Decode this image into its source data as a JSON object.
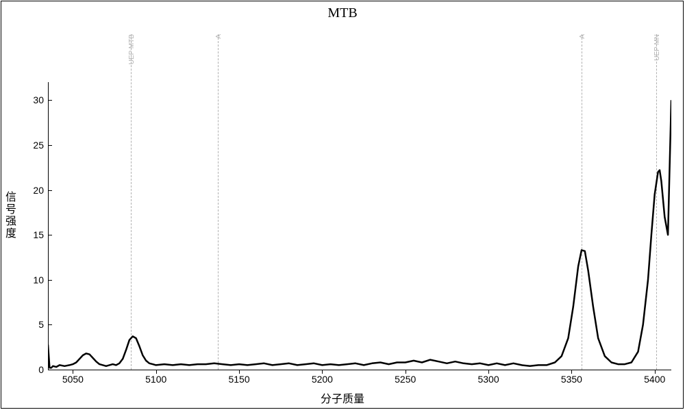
{
  "chart": {
    "type": "line",
    "title": "MTB",
    "title_fontsize": 20,
    "xlabel": "分子质量",
    "ylabel": "信号强度",
    "label_fontsize": 16,
    "xlim": [
      5035,
      5410
    ],
    "ylim": [
      0,
      32
    ],
    "xtick_vals": [
      5050,
      5100,
      5150,
      5200,
      5250,
      5300,
      5350,
      5400
    ],
    "ytick_vals": [
      0,
      5,
      10,
      15,
      20,
      25,
      30
    ],
    "background_color": "#ffffff",
    "axis_color": "#000000",
    "line_color": "#000000",
    "line_width": 2.5,
    "ref_lines": [
      {
        "x": 5085,
        "label": "UEP MTB",
        "color": "#b0b0b0"
      },
      {
        "x": 5137,
        "label": "A",
        "color": "#b0b0b0"
      },
      {
        "x": 5356,
        "label": "A",
        "color": "#b0b0b0"
      },
      {
        "x": 5401,
        "label": "UEP MN",
        "color": "#b0b0b0"
      }
    ],
    "data": [
      [
        5035,
        2.8
      ],
      [
        5036,
        0.2
      ],
      [
        5037,
        0.2
      ],
      [
        5038,
        0.4
      ],
      [
        5040,
        0.3
      ],
      [
        5042,
        0.5
      ],
      [
        5045,
        0.4
      ],
      [
        5048,
        0.5
      ],
      [
        5050,
        0.6
      ],
      [
        5052,
        0.8
      ],
      [
        5054,
        1.2
      ],
      [
        5056,
        1.6
      ],
      [
        5058,
        1.8
      ],
      [
        5060,
        1.7
      ],
      [
        5062,
        1.3
      ],
      [
        5064,
        0.9
      ],
      [
        5066,
        0.6
      ],
      [
        5068,
        0.5
      ],
      [
        5070,
        0.4
      ],
      [
        5072,
        0.5
      ],
      [
        5074,
        0.6
      ],
      [
        5076,
        0.5
      ],
      [
        5078,
        0.7
      ],
      [
        5080,
        1.2
      ],
      [
        5082,
        2.2
      ],
      [
        5084,
        3.3
      ],
      [
        5086,
        3.7
      ],
      [
        5088,
        3.5
      ],
      [
        5090,
        2.6
      ],
      [
        5092,
        1.6
      ],
      [
        5094,
        1.0
      ],
      [
        5096,
        0.7
      ],
      [
        5098,
        0.6
      ],
      [
        5100,
        0.5
      ],
      [
        5105,
        0.6
      ],
      [
        5110,
        0.5
      ],
      [
        5115,
        0.6
      ],
      [
        5120,
        0.5
      ],
      [
        5125,
        0.6
      ],
      [
        5130,
        0.6
      ],
      [
        5135,
        0.7
      ],
      [
        5140,
        0.6
      ],
      [
        5145,
        0.5
      ],
      [
        5150,
        0.6
      ],
      [
        5155,
        0.5
      ],
      [
        5160,
        0.6
      ],
      [
        5165,
        0.7
      ],
      [
        5170,
        0.5
      ],
      [
        5175,
        0.6
      ],
      [
        5180,
        0.7
      ],
      [
        5185,
        0.5
      ],
      [
        5190,
        0.6
      ],
      [
        5195,
        0.7
      ],
      [
        5200,
        0.5
      ],
      [
        5205,
        0.6
      ],
      [
        5210,
        0.5
      ],
      [
        5215,
        0.6
      ],
      [
        5220,
        0.7
      ],
      [
        5225,
        0.5
      ],
      [
        5230,
        0.7
      ],
      [
        5235,
        0.8
      ],
      [
        5240,
        0.6
      ],
      [
        5245,
        0.8
      ],
      [
        5250,
        0.8
      ],
      [
        5255,
        1.0
      ],
      [
        5260,
        0.8
      ],
      [
        5265,
        1.1
      ],
      [
        5270,
        0.9
      ],
      [
        5275,
        0.7
      ],
      [
        5280,
        0.9
      ],
      [
        5285,
        0.7
      ],
      [
        5290,
        0.6
      ],
      [
        5295,
        0.7
      ],
      [
        5300,
        0.5
      ],
      [
        5305,
        0.7
      ],
      [
        5310,
        0.5
      ],
      [
        5315,
        0.7
      ],
      [
        5320,
        0.5
      ],
      [
        5325,
        0.4
      ],
      [
        5330,
        0.5
      ],
      [
        5335,
        0.5
      ],
      [
        5340,
        0.8
      ],
      [
        5344,
        1.5
      ],
      [
        5348,
        3.5
      ],
      [
        5351,
        7.0
      ],
      [
        5354,
        11.5
      ],
      [
        5356,
        13.3
      ],
      [
        5358,
        13.2
      ],
      [
        5360,
        11.0
      ],
      [
        5363,
        7.0
      ],
      [
        5366,
        3.5
      ],
      [
        5370,
        1.5
      ],
      [
        5374,
        0.8
      ],
      [
        5378,
        0.6
      ],
      [
        5382,
        0.6
      ],
      [
        5386,
        0.8
      ],
      [
        5390,
        2.0
      ],
      [
        5393,
        5.0
      ],
      [
        5396,
        10.0
      ],
      [
        5398,
        15.0
      ],
      [
        5400,
        19.5
      ],
      [
        5402,
        22.0
      ],
      [
        5403,
        22.2
      ],
      [
        5404,
        21.0
      ],
      [
        5406,
        17.0
      ],
      [
        5408,
        15.0
      ],
      [
        5410,
        30.0
      ]
    ]
  }
}
